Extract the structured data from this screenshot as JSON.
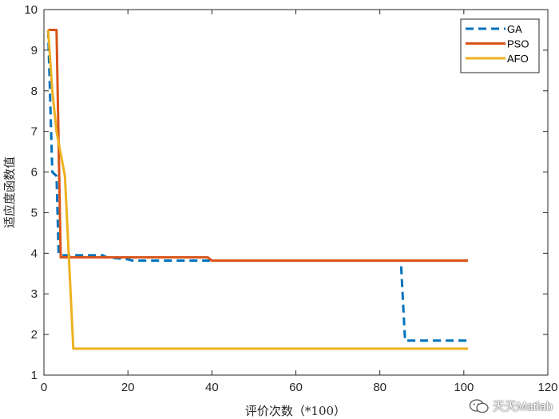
{
  "chart_data": {
    "type": "line",
    "xlabel": "评价次数（*100）",
    "ylabel": "适应度函数值",
    "xlim": [
      0,
      120
    ],
    "ylim": [
      1,
      10
    ],
    "xticks": [
      0,
      20,
      40,
      60,
      80,
      100,
      120
    ],
    "yticks": [
      1,
      2,
      3,
      4,
      5,
      6,
      7,
      8,
      9,
      10
    ],
    "grid": false,
    "legend_position": "top-right",
    "series": [
      {
        "name": "GA",
        "color": "#0072BD",
        "line_style": "dashed",
        "points": [
          [
            1,
            9.5
          ],
          [
            2,
            6.0
          ],
          [
            3,
            5.9
          ],
          [
            3.5,
            4.0
          ],
          [
            4,
            3.95
          ],
          [
            14,
            3.95
          ],
          [
            15,
            3.9
          ],
          [
            20,
            3.85
          ],
          [
            21,
            3.82
          ],
          [
            39,
            3.82
          ],
          [
            40,
            3.82
          ],
          [
            85,
            3.82
          ],
          [
            86,
            1.85
          ],
          [
            101,
            1.85
          ]
        ]
      },
      {
        "name": "PSO",
        "color": "#D95319",
        "line_style": "solid",
        "points": [
          [
            1,
            9.5
          ],
          [
            3,
            9.5
          ],
          [
            4,
            3.9
          ],
          [
            39,
            3.9
          ],
          [
            40,
            3.82
          ],
          [
            101,
            3.82
          ]
        ]
      },
      {
        "name": "AFO",
        "color": "#EDB120",
        "line_style": "solid",
        "points": [
          [
            1,
            9.5
          ],
          [
            2,
            8.0
          ],
          [
            3,
            7.0
          ],
          [
            5,
            5.9
          ],
          [
            7,
            1.65
          ],
          [
            101,
            1.65
          ]
        ]
      }
    ]
  },
  "watermark": {
    "text": "天天Matlab",
    "icon": "wechat-icon"
  }
}
